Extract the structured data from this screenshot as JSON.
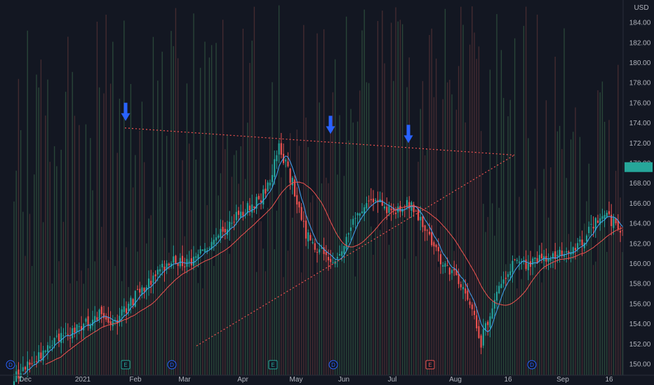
{
  "chart_data": {
    "type": "candlestick",
    "currency_label": "USD",
    "y_axis": {
      "range": [
        149.5,
        185.5
      ],
      "tick_labels": [
        "150.00",
        "152.00",
        "154.00",
        "156.00",
        "158.00",
        "160.00",
        "162.00",
        "164.00",
        "166.00",
        "168.00",
        "170.00",
        "172.00",
        "174.00",
        "176.00",
        "178.00",
        "180.00",
        "182.00",
        "184.00"
      ]
    },
    "x_axis": {
      "tick_labels": [
        "Dec",
        "2021",
        "Feb",
        "Mar",
        "Apr",
        "May",
        "Jun",
        "Jul",
        "Aug",
        "16",
        "Sep",
        "16"
      ]
    },
    "last_price_label": "",
    "colors": {
      "background": "#131722",
      "up": "#26a69a",
      "down": "#ef5350",
      "ma_fast": "#42a5f5",
      "ma_slow": "#ef5350",
      "trendline": "#ef5350",
      "arrow": "#2962ff",
      "price_badge": "#26a69a",
      "volume_up": "#3d6b4a",
      "volume_down": "#6b3d3d"
    },
    "triangle_trendlines": {
      "upper": {
        "start_price": 173.5,
        "end_price": 170.8
      },
      "lower": {
        "start_price": 151.8,
        "end_price": 170.8
      }
    },
    "markers": [
      {
        "type": "D",
        "color": "#2962ff"
      },
      {
        "type": "E",
        "color": "#26a69a"
      },
      {
        "type": "D",
        "color": "#2962ff"
      },
      {
        "type": "E",
        "color": "#26a69a"
      },
      {
        "type": "D",
        "color": "#2962ff"
      },
      {
        "type": "E",
        "color": "#ef5350"
      },
      {
        "type": "D",
        "color": "#2962ff"
      }
    ],
    "arrows": [
      {
        "label": "down-arrow",
        "at_price": 173.5
      },
      {
        "label": "down-arrow",
        "at_price": 172.2
      },
      {
        "label": "down-arrow",
        "at_price": 171.3
      }
    ],
    "price_keyframes": [
      [
        0,
        148.5
      ],
      [
        10,
        150.5
      ],
      [
        20,
        152.5
      ],
      [
        30,
        153.8
      ],
      [
        38,
        155.0
      ],
      [
        45,
        154.2
      ],
      [
        55,
        157.0
      ],
      [
        62,
        158.5
      ],
      [
        70,
        160.5
      ],
      [
        78,
        159.8
      ],
      [
        88,
        162.0
      ],
      [
        96,
        164.0
      ],
      [
        104,
        165.5
      ],
      [
        112,
        167.0
      ],
      [
        118,
        171.5
      ],
      [
        124,
        168.0
      ],
      [
        130,
        163.0
      ],
      [
        137,
        161.0
      ],
      [
        144,
        160.2
      ],
      [
        152,
        164.5
      ],
      [
        160,
        166.5
      ],
      [
        168,
        165.0
      ],
      [
        176,
        166.0
      ],
      [
        184,
        163.0
      ],
      [
        192,
        159.5
      ],
      [
        198,
        158.5
      ],
      [
        203,
        156.0
      ],
      [
        208,
        152.2
      ],
      [
        214,
        156.5
      ],
      [
        222,
        159.8
      ],
      [
        232,
        160.2
      ],
      [
        242,
        160.8
      ],
      [
        252,
        162.0
      ],
      [
        262,
        165.0
      ],
      [
        270,
        163.5
      ],
      [
        280,
        161.5
      ],
      [
        286,
        158.0
      ],
      [
        292,
        161.0
      ],
      [
        302,
        167.0
      ],
      [
        310,
        165.0
      ],
      [
        318,
        163.0
      ],
      [
        326,
        164.0
      ],
      [
        334,
        166.0
      ],
      [
        342,
        168.5
      ],
      [
        348,
        170.3
      ],
      [
        356,
        170.0
      ],
      [
        362,
        171.5
      ],
      [
        367,
        170.5
      ],
      [
        372,
        168.5
      ],
      [
        378,
        166.0
      ],
      [
        386,
        165.0
      ],
      [
        396,
        163.5
      ],
      [
        404,
        164.5
      ],
      [
        412,
        162.8
      ],
      [
        420,
        163.3
      ],
      [
        428,
        165.0
      ],
      [
        436,
        167.0
      ],
      [
        442,
        169.0
      ],
      [
        448,
        170.0
      ],
      [
        454,
        170.5
      ],
      [
        460,
        169.5
      ],
      [
        466,
        168.0
      ],
      [
        470,
        169.5
      ]
    ]
  }
}
